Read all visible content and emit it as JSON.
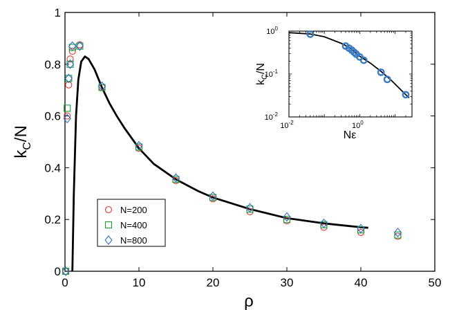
{
  "chart_data": [
    {
      "type": "scatter",
      "xlabel": "ρ",
      "ylabel_main": "k",
      "ylabel_sub": "C",
      "ylabel_tail": "/N",
      "xlim": [
        0,
        50
      ],
      "ylim": [
        0,
        1
      ],
      "xticks": [
        0,
        10,
        20,
        30,
        40,
        50
      ],
      "yticks": [
        0,
        0.2,
        0.4,
        0.6,
        0.8,
        1
      ],
      "xtick_labels": [
        "0",
        "10",
        "20",
        "30",
        "40",
        "50"
      ],
      "ytick_labels": [
        "0",
        "0.2",
        "0.4",
        "0.6",
        "0.8",
        "1"
      ],
      "legend_position": "lower-left",
      "series": [
        {
          "name": "N=200",
          "marker": "circle",
          "color": "#e8322c",
          "points": [
            [
              0.1,
              0.0
            ],
            [
              0.3,
              0.6
            ],
            [
              0.5,
              0.72
            ],
            [
              0.7,
              0.82
            ],
            [
              1.0,
              0.85
            ],
            [
              2.0,
              0.875
            ],
            [
              5,
              0.71
            ],
            [
              10,
              0.475
            ],
            [
              15,
              0.35
            ],
            [
              20,
              0.28
            ],
            [
              25,
              0.23
            ],
            [
              30,
              0.195
            ],
            [
              35,
              0.17
            ],
            [
              40,
              0.15
            ],
            [
              45,
              0.135
            ]
          ]
        },
        {
          "name": "N=400",
          "marker": "square",
          "color": "#1a9a2a",
          "points": [
            [
              0.1,
              0.0
            ],
            [
              0.3,
              0.63
            ],
            [
              0.5,
              0.745
            ],
            [
              0.7,
              0.8
            ],
            [
              1.0,
              0.865
            ],
            [
              2.0,
              0.87
            ],
            [
              5,
              0.71
            ],
            [
              10,
              0.48
            ],
            [
              15,
              0.355
            ],
            [
              20,
              0.285
            ],
            [
              25,
              0.24
            ],
            [
              30,
              0.2
            ],
            [
              35,
              0.18
            ],
            [
              40,
              0.16
            ],
            [
              45,
              0.14
            ]
          ]
        },
        {
          "name": "N=800",
          "marker": "diamond",
          "color": "#2a6fc9",
          "points": [
            [
              0.1,
              0.0
            ],
            [
              0.3,
              0.59
            ],
            [
              0.5,
              0.745
            ],
            [
              0.7,
              0.8
            ],
            [
              1.0,
              0.87
            ],
            [
              2.0,
              0.87
            ],
            [
              5,
              0.715
            ],
            [
              10,
              0.485
            ],
            [
              15,
              0.36
            ],
            [
              20,
              0.29
            ],
            [
              25,
              0.245
            ],
            [
              30,
              0.21
            ],
            [
              35,
              0.185
            ],
            [
              40,
              0.165
            ],
            [
              45,
              0.15
            ]
          ]
        }
      ],
      "curve": {
        "color": "#000000",
        "points": [
          [
            1.0,
            0.0
          ],
          [
            1.2,
            0.3
          ],
          [
            1.5,
            0.6
          ],
          [
            1.8,
            0.74
          ],
          [
            2.2,
            0.81
          ],
          [
            2.7,
            0.83
          ],
          [
            3.2,
            0.82
          ],
          [
            4,
            0.78
          ],
          [
            5,
            0.71
          ],
          [
            6,
            0.65
          ],
          [
            7,
            0.6
          ],
          [
            8,
            0.555
          ],
          [
            10,
            0.475
          ],
          [
            12,
            0.415
          ],
          [
            15,
            0.355
          ],
          [
            18,
            0.31
          ],
          [
            20,
            0.285
          ],
          [
            25,
            0.24
          ],
          [
            30,
            0.205
          ],
          [
            35,
            0.185
          ],
          [
            40,
            0.17
          ],
          [
            41,
            0.168
          ]
        ]
      }
    },
    {
      "type": "scatter",
      "scale": "log-log",
      "xlabel": "Nε",
      "ylabel_main": "k",
      "ylabel_sub": "C",
      "ylabel_tail": "/N",
      "xlim": [
        0.01,
        30
      ],
      "ylim": [
        0.01,
        1
      ],
      "xtick_labels": [
        {
          "base": "10",
          "exp": "-2"
        },
        {
          "base": "10",
          "exp": "0"
        }
      ],
      "ytick_labels": [
        {
          "base": "10",
          "exp": "0"
        },
        {
          "base": "10",
          "exp": "-1"
        },
        {
          "base": "10",
          "exp": "-2"
        }
      ],
      "marker_color": "#3a7cc4",
      "points": [
        [
          0.04,
          0.85
        ],
        [
          0.4,
          0.45
        ],
        [
          0.5,
          0.4
        ],
        [
          0.6,
          0.36
        ],
        [
          0.7,
          0.32
        ],
        [
          0.8,
          0.29
        ],
        [
          1.0,
          0.25
        ],
        [
          1.3,
          0.21
        ],
        [
          4,
          0.11
        ],
        [
          6,
          0.075
        ],
        [
          20,
          0.033
        ]
      ],
      "curve": [
        [
          0.01,
          0.92
        ],
        [
          0.04,
          0.86
        ],
        [
          0.1,
          0.74
        ],
        [
          0.3,
          0.52
        ],
        [
          0.5,
          0.42
        ],
        [
          1,
          0.26
        ],
        [
          2,
          0.18
        ],
        [
          4,
          0.115
        ],
        [
          8,
          0.07
        ],
        [
          20,
          0.033
        ],
        [
          25,
          0.028
        ]
      ]
    }
  ]
}
